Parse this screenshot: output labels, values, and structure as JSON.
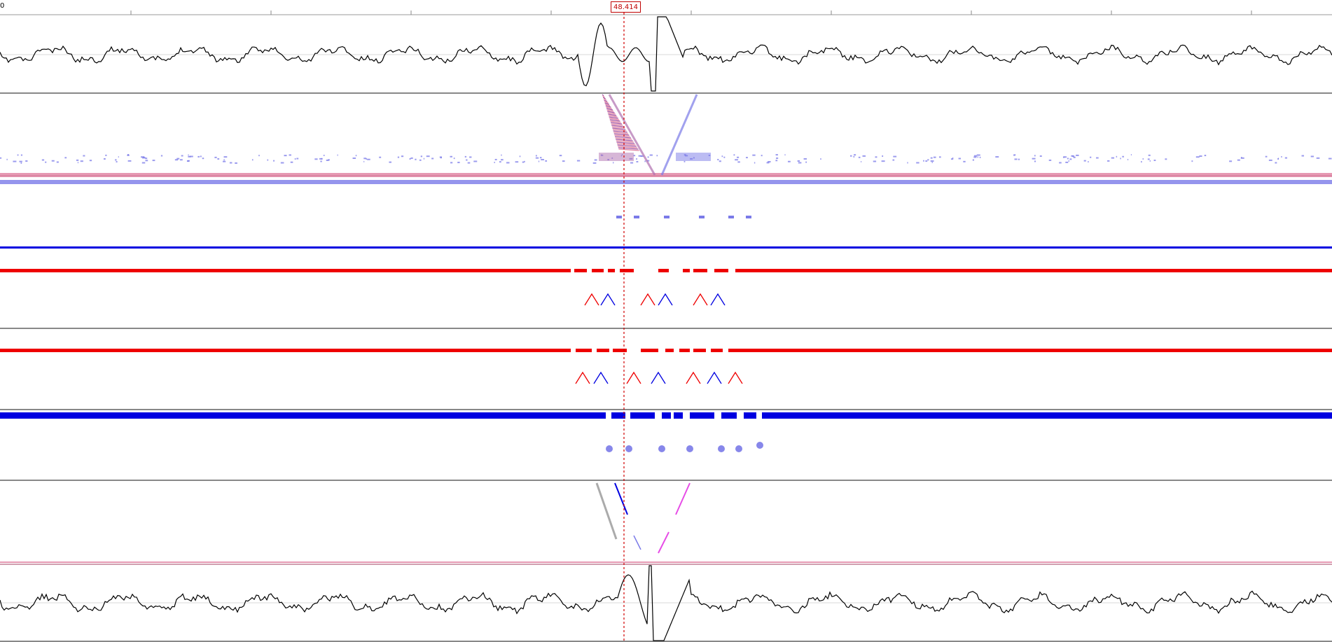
{
  "ruler": {
    "start_label": "0"
  },
  "cursor": {
    "label": "48.414"
  },
  "colors": {
    "waveform": "#000000",
    "cursor": "#d00000",
    "blue": "#0000e0",
    "light_blue": "#7a7ae8",
    "red": "#ee0000",
    "pink": "#e080a0",
    "magenta": "#e020e0",
    "gray": "#888888",
    "separator": "#888888"
  }
}
